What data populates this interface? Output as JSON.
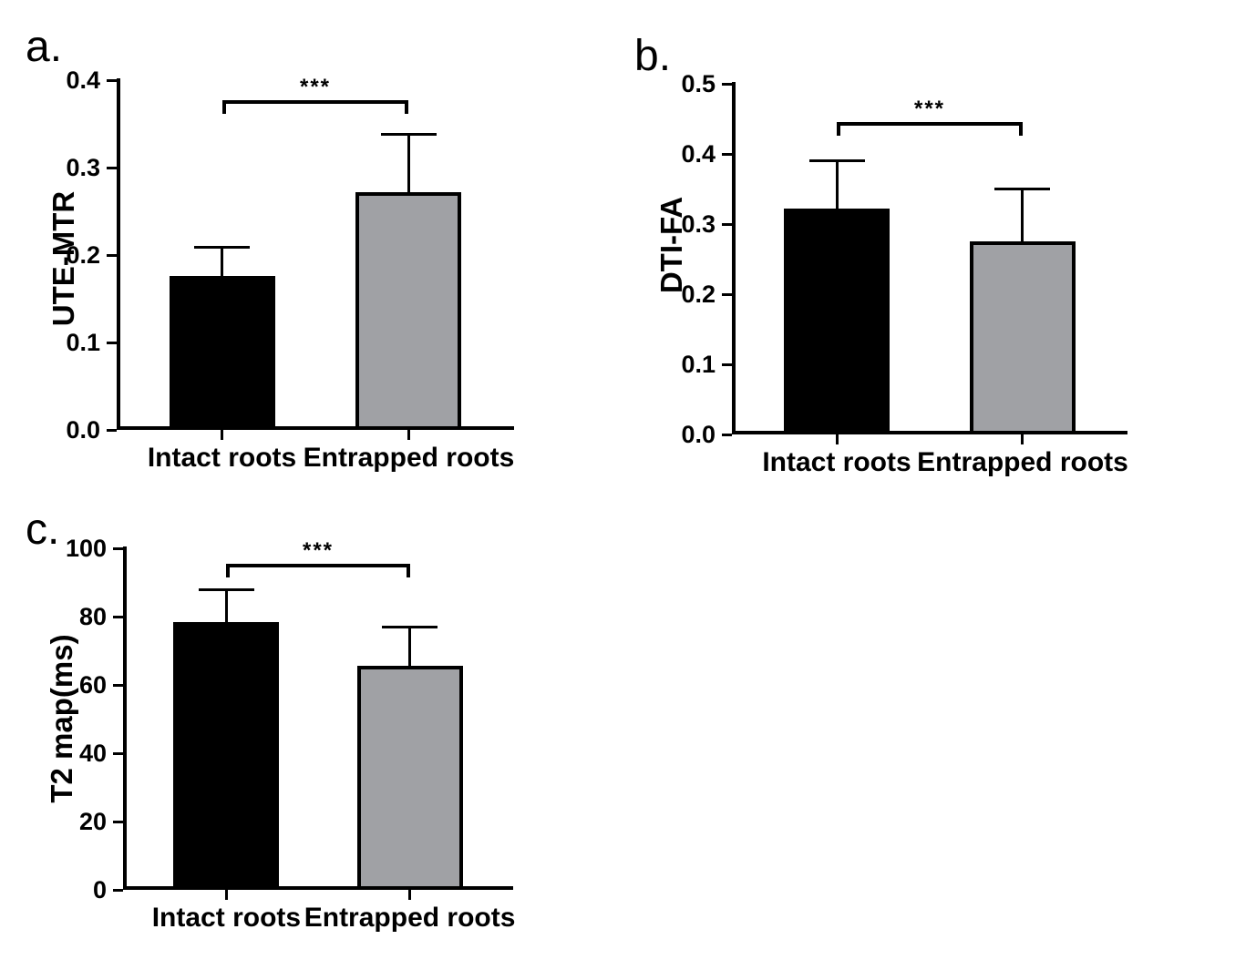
{
  "figure": {
    "background_color": "#ffffff",
    "axis_color": "#000000",
    "bar_fill_colors": [
      "#000000",
      "#a0a1a5"
    ],
    "significance_label": "***"
  },
  "chart_data": [
    {
      "type": "bar",
      "panel_letter": "a.",
      "title": "",
      "xlabel": "",
      "ylabel": "UTE-MTR",
      "categories": [
        "Intact roots",
        "Entrapped roots"
      ],
      "values": [
        0.176,
        0.272
      ],
      "errors_sd": [
        0.033,
        0.066
      ],
      "series_colors": [
        "#000000",
        "#a0a1a5"
      ],
      "ylim": [
        0,
        0.4
      ],
      "yticks": [
        0,
        0.1,
        0.2,
        0.3,
        0.4
      ],
      "ytick_labels": [
        "0.0",
        "0.1",
        "0.2",
        "0.3",
        "0.4"
      ],
      "grid": false,
      "legend": "none",
      "significance": {
        "label": "***",
        "between": [
          0,
          1
        ],
        "y": 0.377
      }
    },
    {
      "type": "bar",
      "panel_letter": "b.",
      "title": "",
      "xlabel": "",
      "ylabel": "DTI-FA",
      "categories": [
        "Intact roots",
        "Entrapped roots"
      ],
      "values": [
        0.322,
        0.275
      ],
      "errors_sd": [
        0.068,
        0.075
      ],
      "series_colors": [
        "#000000",
        "#a0a1a5"
      ],
      "ylim": [
        0,
        0.5
      ],
      "yticks": [
        0,
        0.1,
        0.2,
        0.3,
        0.4,
        0.5
      ],
      "ytick_labels": [
        "0.0",
        "0.1",
        "0.2",
        "0.3",
        "0.4",
        "0.5"
      ],
      "grid": false,
      "legend": "none",
      "significance": {
        "label": "***",
        "between": [
          0,
          1
        ],
        "y": 0.446
      }
    },
    {
      "type": "bar",
      "panel_letter": "c.",
      "title": "",
      "xlabel": "",
      "ylabel": "T2 map(ms)",
      "categories": [
        "Intact roots",
        "Entrapped roots"
      ],
      "values": [
        78.5,
        65.5
      ],
      "errors_sd": [
        9.5,
        11.5
      ],
      "series_colors": [
        "#000000",
        "#a0a1a5"
      ],
      "ylim": [
        0,
        100
      ],
      "yticks": [
        0,
        20,
        40,
        60,
        80,
        100
      ],
      "ytick_labels": [
        "0",
        "20",
        "40",
        "60",
        "80",
        "100"
      ],
      "grid": false,
      "legend": "none",
      "significance": {
        "label": "***",
        "between": [
          0,
          1
        ],
        "y": 95.5
      }
    }
  ]
}
